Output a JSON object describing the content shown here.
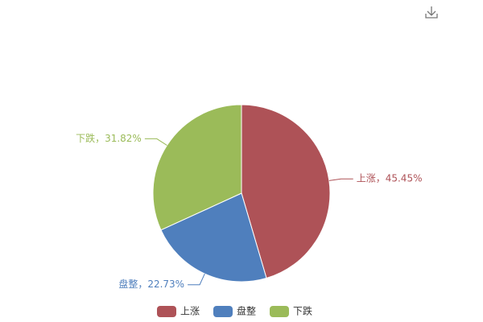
{
  "chart_data": {
    "type": "pie",
    "categories": [
      "上涨",
      "盘整",
      "下跌"
    ],
    "values": [
      45.45,
      22.73,
      31.82
    ],
    "value_labels": [
      "上涨，45.45%",
      "盘整，22.73%",
      "下跌，31.82%"
    ],
    "colors": [
      "#ae5257",
      "#4f7fbd",
      "#9bbb59"
    ],
    "legend": "bottom"
  }
}
